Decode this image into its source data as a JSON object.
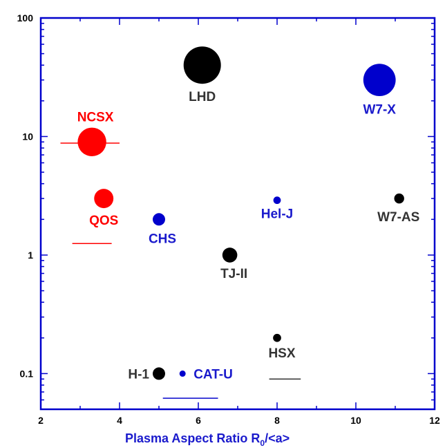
{
  "chart_data": {
    "type": "scatter",
    "title": "",
    "xlabel_main": "Plasma Aspect Ratio R",
    "xlabel_sub": "0",
    "xlabel_tail": "/<a>",
    "ylabel": "",
    "xlim": [
      2,
      12
    ],
    "ylim": [
      0.05,
      100
    ],
    "yscale": "log",
    "grid": false,
    "x_ticks": [
      "2",
      "4",
      "6",
      "8",
      "10",
      "12"
    ],
    "y_ticks": [
      "0.1",
      "1",
      "10",
      "100"
    ],
    "colors": {
      "axis": "#0000cc",
      "black": "#000000",
      "blue": "#0000cc",
      "red": "#ff0000",
      "label_black": "#333333",
      "label_blue": "#1a1acc"
    },
    "points": [
      {
        "name": "LHD",
        "x": 6.1,
        "y": 40,
        "size": 3.0,
        "color": "black"
      },
      {
        "name": "W7-X",
        "x": 10.6,
        "y": 30,
        "size": 2.6,
        "color": "blue"
      },
      {
        "name": "NCSX",
        "x": 3.3,
        "y": 9,
        "size": 2.3,
        "color": "red"
      },
      {
        "name": "QOS",
        "x": 3.6,
        "y": 3,
        "size": 1.55,
        "color": "red"
      },
      {
        "name": "CHS",
        "x": 5.0,
        "y": 2,
        "size": 1.0,
        "color": "blue"
      },
      {
        "name": "Hel-J",
        "x": 8.0,
        "y": 2.9,
        "size": 0.6,
        "color": "blue"
      },
      {
        "name": "W7-AS",
        "x": 11.1,
        "y": 3,
        "size": 0.8,
        "color": "black"
      },
      {
        "name": "TJ-II",
        "x": 6.8,
        "y": 1,
        "size": 1.2,
        "color": "black"
      },
      {
        "name": "HSX",
        "x": 8.0,
        "y": 0.2,
        "size": 0.65,
        "color": "black"
      },
      {
        "name": "H-1",
        "x": 5.0,
        "y": 0.1,
        "size": 1.0,
        "color": "black"
      },
      {
        "name": "CAT-U",
        "x": 5.6,
        "y": 0.1,
        "size": 0.5,
        "color": "blue"
      }
    ]
  }
}
